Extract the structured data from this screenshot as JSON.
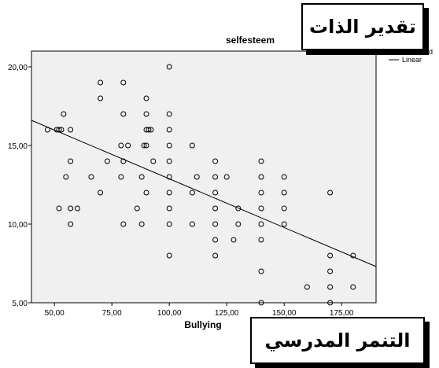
{
  "annotations": {
    "y_arabic": "تقدير الذات",
    "x_arabic": "التنمر المدرسي"
  },
  "legend": {
    "observed": "Observed",
    "linear": "Linear"
  },
  "colors": {
    "plot_background": "#f0f0f0",
    "marker": "#000000",
    "fit_line": "#000000"
  },
  "chart_data": {
    "type": "scatter",
    "title": "selfesteem",
    "xlabel": "Bullying",
    "ylabel": "",
    "xlim": [
      40,
      190
    ],
    "ylim": [
      5,
      21
    ],
    "xticks": [
      50,
      75,
      100,
      125,
      150,
      175
    ],
    "yticks": [
      5,
      10,
      15,
      20
    ],
    "xtick_labels": [
      "50,00",
      "75,00",
      "100,00",
      "125,00",
      "150,00",
      "175,00"
    ],
    "ytick_labels": [
      "5,00",
      "10,00",
      "15,00",
      "20,00"
    ],
    "grid": false,
    "legend_position": "top-right",
    "series": [
      {
        "name": "Observed",
        "marker": "circle-open",
        "points": [
          [
            47,
            16
          ],
          [
            51,
            16
          ],
          [
            52,
            16
          ],
          [
            53,
            16
          ],
          [
            54,
            17
          ],
          [
            57,
            16
          ],
          [
            52,
            11
          ],
          [
            55,
            13
          ],
          [
            57,
            14
          ],
          [
            57,
            11
          ],
          [
            57,
            10
          ],
          [
            60,
            11
          ],
          [
            66,
            13
          ],
          [
            70,
            19
          ],
          [
            70,
            18
          ],
          [
            70,
            12
          ],
          [
            73,
            14
          ],
          [
            79,
            13
          ],
          [
            79,
            15
          ],
          [
            80,
            19
          ],
          [
            80,
            17
          ],
          [
            80,
            14
          ],
          [
            80,
            10
          ],
          [
            82,
            15
          ],
          [
            86,
            11
          ],
          [
            88,
            13
          ],
          [
            88,
            10
          ],
          [
            89,
            15
          ],
          [
            90,
            18
          ],
          [
            90,
            17
          ],
          [
            90,
            16
          ],
          [
            90,
            15
          ],
          [
            90,
            12
          ],
          [
            91,
            16
          ],
          [
            92,
            16
          ],
          [
            93,
            14
          ],
          [
            100,
            20
          ],
          [
            100,
            17
          ],
          [
            100,
            16
          ],
          [
            100,
            15
          ],
          [
            100,
            14
          ],
          [
            100,
            13
          ],
          [
            100,
            12
          ],
          [
            100,
            11
          ],
          [
            100,
            10
          ],
          [
            100,
            8
          ],
          [
            110,
            15
          ],
          [
            110,
            12
          ],
          [
            110,
            10
          ],
          [
            112,
            13
          ],
          [
            120,
            14
          ],
          [
            120,
            13
          ],
          [
            120,
            12
          ],
          [
            120,
            11
          ],
          [
            120,
            10
          ],
          [
            120,
            9
          ],
          [
            120,
            8
          ],
          [
            125,
            13
          ],
          [
            128,
            9
          ],
          [
            130,
            11
          ],
          [
            130,
            10
          ],
          [
            140,
            14
          ],
          [
            140,
            13
          ],
          [
            140,
            12
          ],
          [
            140,
            11
          ],
          [
            140,
            10
          ],
          [
            140,
            9
          ],
          [
            140,
            7
          ],
          [
            140,
            5
          ],
          [
            150,
            13
          ],
          [
            150,
            12
          ],
          [
            150,
            11
          ],
          [
            150,
            10
          ],
          [
            160,
            6
          ],
          [
            170,
            12
          ],
          [
            170,
            8
          ],
          [
            170,
            7
          ],
          [
            170,
            6
          ],
          [
            170,
            5
          ],
          [
            180,
            8
          ],
          [
            180,
            6
          ]
        ]
      },
      {
        "name": "Linear",
        "type": "line",
        "points": [
          [
            40,
            16.6
          ],
          [
            190,
            7.3
          ]
        ]
      }
    ]
  }
}
